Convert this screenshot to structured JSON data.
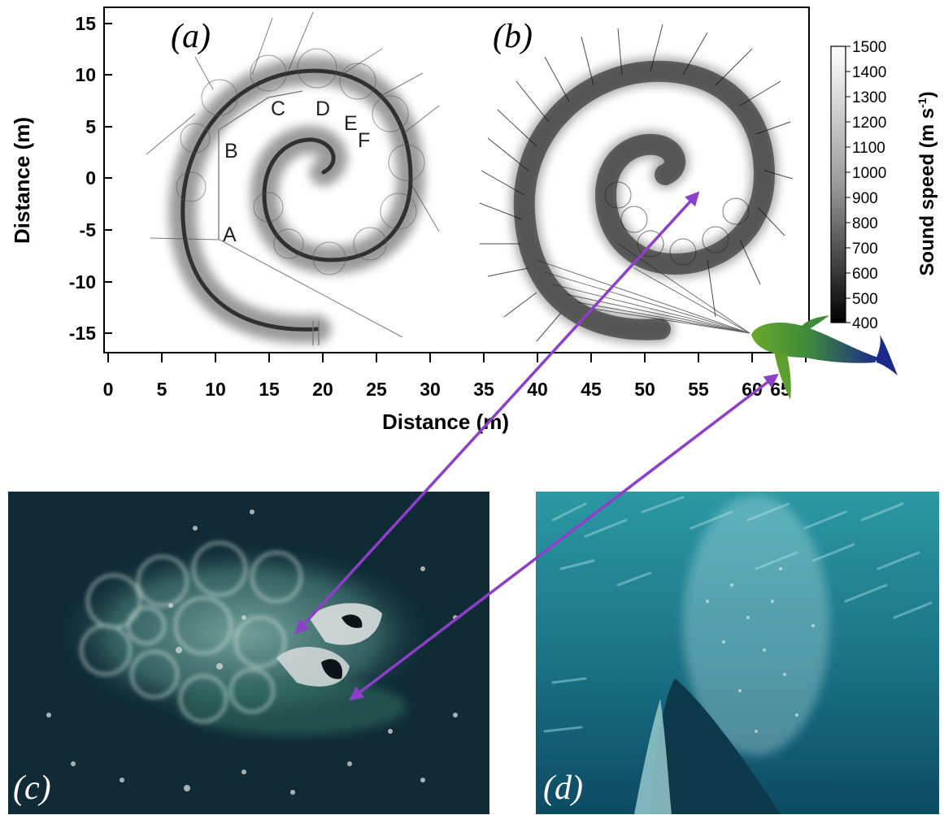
{
  "figure": {
    "panel_labels": {
      "a": "(a)",
      "b": "(b)",
      "c": "(c)",
      "d": "(d)"
    },
    "point_labels": [
      "A",
      "B",
      "C",
      "D",
      "E",
      "F"
    ],
    "x_axis": {
      "title": "Distance (m)",
      "ticks": [
        "0",
        "5",
        "10",
        "15",
        "20",
        "25",
        "30",
        "35",
        "40",
        "45",
        "50",
        "55",
        "60",
        "65"
      ]
    },
    "y_axis": {
      "title": "Distance (m)",
      "ticks": [
        "15",
        "10",
        "5",
        "0",
        "-5",
        "-10",
        "-15"
      ]
    },
    "colorbar": {
      "title": "Sound speed (m s",
      "title_sup": "-1",
      "title_end": ")",
      "ticks": [
        "1500",
        "1400",
        "1300",
        "1200",
        "1100",
        "1000",
        "900",
        "800",
        "700",
        "600",
        "500",
        "400"
      ]
    },
    "colors": {
      "arrow": "#8e3fc9",
      "whale_head": "#5a9a2a",
      "whale_tail": "#1e2f8c",
      "ocean_dark": "#0e2630",
      "underwater": "#1f7f93"
    }
  }
}
